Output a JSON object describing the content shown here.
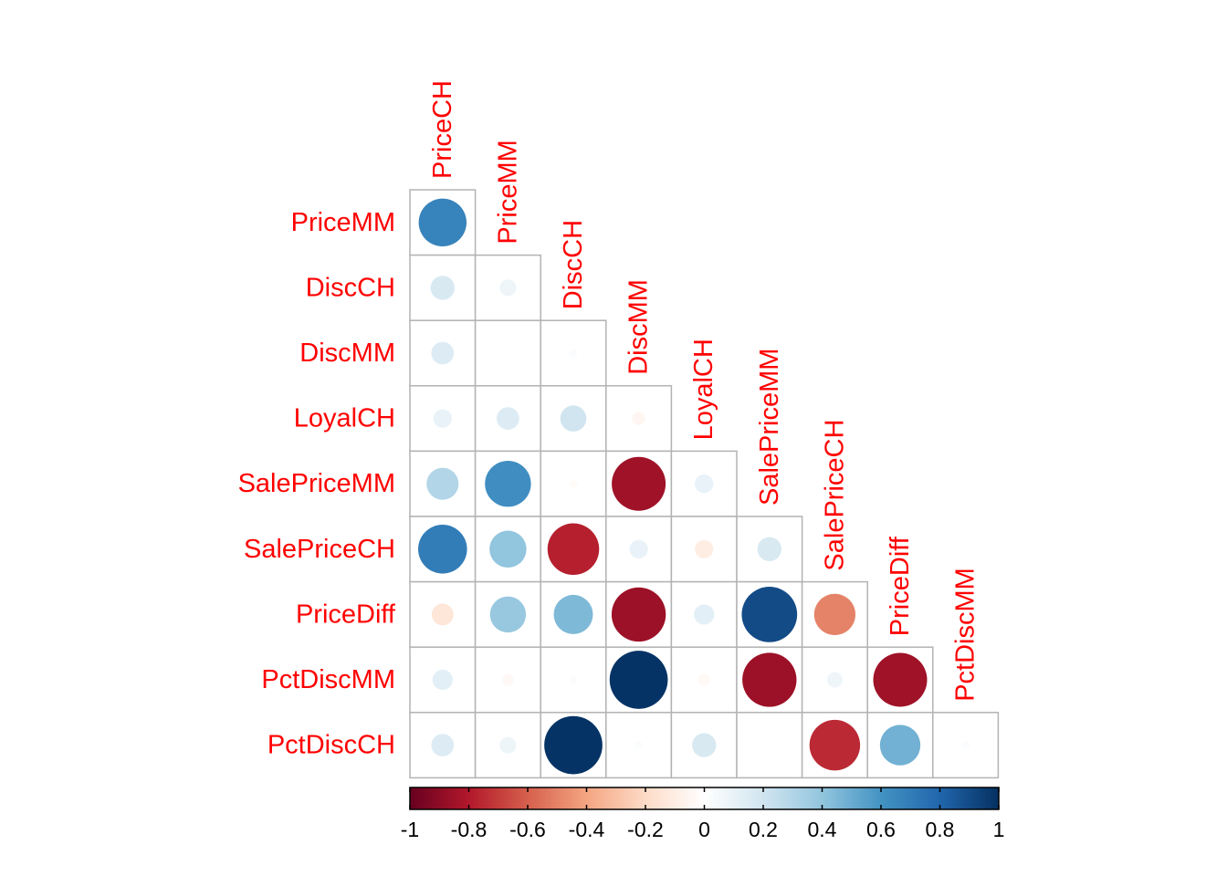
{
  "chart_data": {
    "type": "heatmap",
    "shape": "circle",
    "layout": "lower-triangle",
    "variables": [
      "PriceCH",
      "PriceMM",
      "DiscCH",
      "DiscMM",
      "LoyalCH",
      "SalePriceMM",
      "SalePriceCH",
      "PriceDiff",
      "PctDiscMM",
      "PctDiscCH"
    ],
    "row_labels": [
      "PriceMM",
      "DiscCH",
      "DiscMM",
      "LoyalCH",
      "SalePriceMM",
      "SalePriceCH",
      "PriceDiff",
      "PctDiscMM",
      "PctDiscCH"
    ],
    "column_labels": [
      "PriceCH",
      "PriceMM",
      "DiscCH",
      "DiscMM",
      "LoyalCH",
      "SalePriceMM",
      "SalePriceCH",
      "PriceDiff",
      "PctDiscMM"
    ],
    "matrix": [
      [
        0.67
      ],
      [
        0.17,
        0.08
      ],
      [
        0.15,
        0.0,
        0.02
      ],
      [
        0.1,
        0.15,
        0.2,
        -0.05
      ],
      [
        0.3,
        0.62,
        -0.02,
        -0.85,
        0.1
      ],
      [
        0.7,
        0.4,
        -0.78,
        0.1,
        -0.1,
        0.17
      ],
      [
        -0.14,
        0.38,
        0.45,
        -0.86,
        0.12,
        0.9,
        -0.5
      ],
      [
        0.12,
        -0.04,
        0.02,
        0.99,
        -0.04,
        -0.86,
        0.07,
        -0.85
      ],
      [
        0.15,
        0.08,
        0.99,
        0.02,
        0.17,
        0.01,
        -0.75,
        0.48,
        0.02
      ]
    ],
    "colorbar": {
      "ticks": [
        "-1",
        "-0.8",
        "-0.6",
        "-0.4",
        "-0.2",
        "0",
        "0.2",
        "0.4",
        "0.6",
        "0.8",
        "1"
      ],
      "range": [
        -1,
        1
      ],
      "palette": [
        "#67001f",
        "#b2182b",
        "#d6604d",
        "#f4a582",
        "#fddbc7",
        "#ffffff",
        "#d1e5f0",
        "#92c5de",
        "#4393c3",
        "#2166ac",
        "#053061"
      ]
    },
    "label_color": "#ff0000",
    "grid_color": "#b3b3b3"
  }
}
